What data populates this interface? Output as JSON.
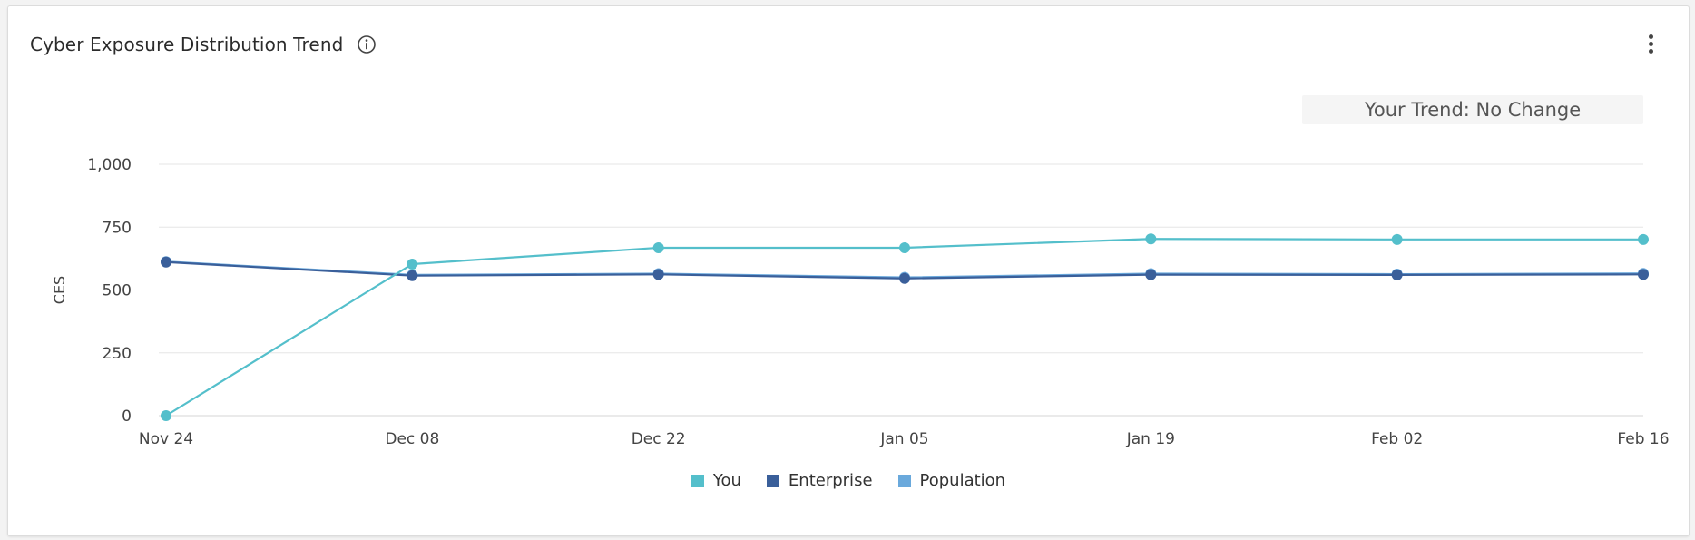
{
  "card": {
    "title": "Cyber Exposure Distribution Trend",
    "trend_label": "Your Trend: No Change"
  },
  "icons": {
    "info": "info-icon",
    "menu": "more-vertical-icon"
  },
  "chart_data": {
    "type": "line",
    "title": "Cyber Exposure Distribution Trend",
    "ylabel": "CES",
    "xlabel": "",
    "ylim": [
      0,
      1000
    ],
    "yticks": [
      0,
      250,
      500,
      750,
      1000
    ],
    "ytick_labels": [
      "0",
      "250",
      "500",
      "750",
      "1,000"
    ],
    "categories": [
      "Nov 24",
      "Dec 08",
      "Dec 22",
      "Jan 05",
      "Jan 19",
      "Feb 02",
      "Feb 16"
    ],
    "grid": "horizontal",
    "legend_placement": "bottom-center",
    "series": [
      {
        "name": "You",
        "color": "#54bfcb",
        "values": [
          0,
          603,
          668,
          668,
          703,
          701,
          701
        ]
      },
      {
        "name": "Enterprise",
        "color": "#3a5f9a",
        "values": [
          611,
          557,
          562,
          546,
          561,
          560,
          562
        ]
      },
      {
        "name": "Population",
        "color": "#6aa9dc",
        "values": [
          613,
          560,
          565,
          550,
          565,
          563,
          566
        ]
      }
    ]
  }
}
